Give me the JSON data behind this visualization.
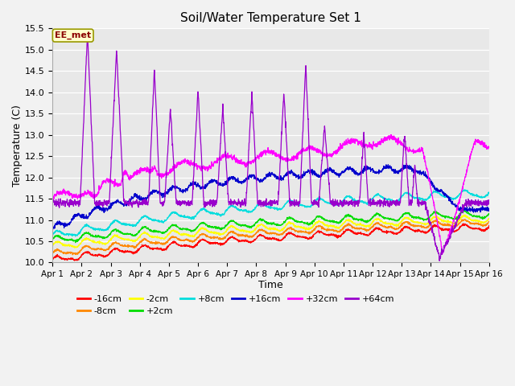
{
  "title": "Soil/Water Temperature Set 1",
  "xlabel": "Time",
  "ylabel": "Temperature (C)",
  "ylim": [
    10.0,
    15.5
  ],
  "xlim": [
    0,
    15
  ],
  "xtick_labels": [
    "Apr 1",
    "Apr 2",
    "Apr 3",
    "Apr 4",
    "Apr 5",
    "Apr 6",
    "Apr 7",
    "Apr 8",
    "Apr 9",
    "Apr 10",
    "Apr 11",
    "Apr 12",
    "Apr 13",
    "Apr 14",
    "Apr 15",
    "Apr 16"
  ],
  "ytick_values": [
    10.0,
    10.5,
    11.0,
    11.5,
    12.0,
    12.5,
    13.0,
    13.5,
    14.0,
    14.5,
    15.0,
    15.5
  ],
  "series": {
    "-16cm": {
      "color": "#ff0000"
    },
    "-8cm": {
      "color": "#ff8800"
    },
    "-2cm": {
      "color": "#ffff00"
    },
    "+2cm": {
      "color": "#00dd00"
    },
    "+8cm": {
      "color": "#00dddd"
    },
    "+16cm": {
      "color": "#0000cc"
    },
    "+32cm": {
      "color": "#ff00ff"
    },
    "+64cm": {
      "color": "#9900cc"
    }
  },
  "annotation_text": "EE_met",
  "bg_color": "#e8e8e8"
}
